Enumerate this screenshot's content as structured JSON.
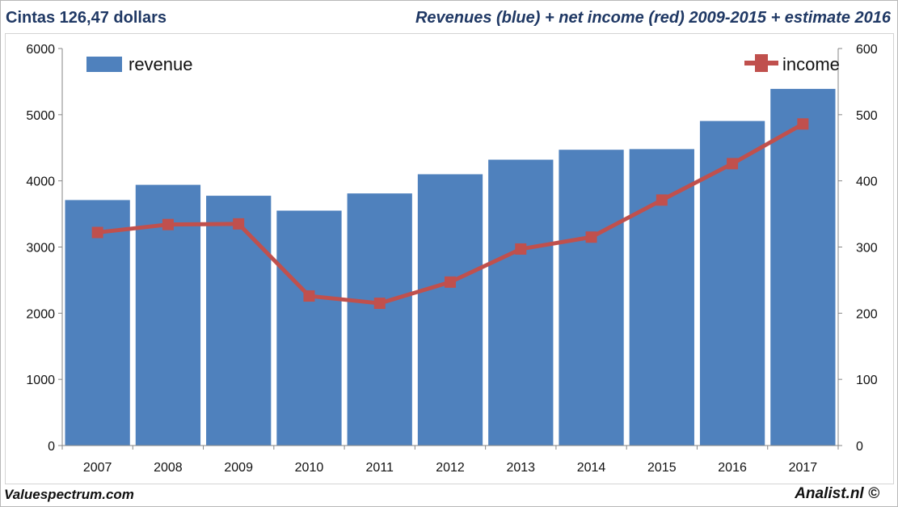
{
  "header": {
    "left": "Cintas 126,47 dollars",
    "right": "Revenues (blue) + net income (red) 2009-2015 + estimate 2016"
  },
  "footer": {
    "left": "Valuespectrum.com",
    "right": "Analist.nl ©"
  },
  "colors": {
    "bar": "#4f81bd",
    "line": "#c0504d",
    "axis": "#868686",
    "text": "#111111",
    "header": "#1f3864"
  },
  "chart_data": {
    "type": "bar",
    "categories": [
      "2007",
      "2008",
      "2009",
      "2010",
      "2011",
      "2012",
      "2013",
      "2014",
      "2015",
      "2016",
      "2017"
    ],
    "series": [
      {
        "name": "revenue",
        "type": "bar",
        "axis": "left",
        "values": [
          3710,
          3940,
          3775,
          3550,
          3810,
          4100,
          4320,
          4470,
          4480,
          4905,
          5390
        ]
      },
      {
        "name": "income",
        "type": "line",
        "axis": "right",
        "values": [
          322,
          334,
          335,
          226,
          215,
          247,
          297,
          315,
          371,
          426,
          486
        ]
      }
    ],
    "y_left": {
      "min": 0,
      "max": 6000,
      "ticks": [
        0,
        1000,
        2000,
        3000,
        4000,
        5000,
        6000
      ]
    },
    "y_right": {
      "min": 0,
      "max": 600,
      "ticks": [
        0,
        100,
        200,
        300,
        400,
        500,
        600
      ]
    },
    "legend": [
      {
        "label": "revenue",
        "symbol": "bar",
        "position": "top-left"
      },
      {
        "label": "income",
        "symbol": "line-marker",
        "position": "top-right"
      }
    ],
    "grid": false,
    "title": "",
    "xlabel": "",
    "ylabel": ""
  }
}
